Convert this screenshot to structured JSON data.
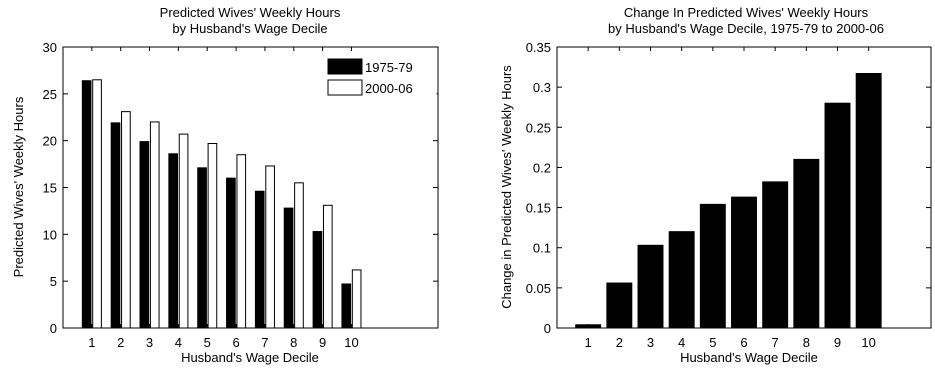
{
  "chart_data": [
    {
      "type": "bar",
      "title": "Predicted Wives' Weekly Hours",
      "subtitle": "by Husband's Wage Decile",
      "xlabel": "Husband's Wage Decile",
      "ylabel": "Predicted Wives' Weekly Hours",
      "categories": [
        "1",
        "2",
        "3",
        "4",
        "5",
        "6",
        "7",
        "8",
        "9",
        "10"
      ],
      "xlim": [
        0,
        13
      ],
      "ylim": [
        0,
        30
      ],
      "yticks": [
        "0",
        "5",
        "10",
        "15",
        "20",
        "25",
        "30"
      ],
      "grid": false,
      "legend_position": "top-right",
      "series": [
        {
          "name": "1975-79",
          "color": "#000000",
          "values": [
            26.4,
            21.9,
            19.9,
            18.6,
            17.1,
            16.0,
            14.6,
            12.8,
            10.3,
            4.7
          ]
        },
        {
          "name": "2000-06",
          "color": "#ffffff",
          "values": [
            26.5,
            23.1,
            22.0,
            20.7,
            19.7,
            18.5,
            17.3,
            15.5,
            13.1,
            6.2
          ]
        }
      ]
    },
    {
      "type": "bar",
      "title": "Change In Predicted Wives' Weekly Hours",
      "subtitle": "by Husband's Wage Decile, 1975-79 to 2000-06",
      "xlabel": "Husband's Wage Decile",
      "ylabel": "Change in Predicted Wives' Weekly Hours",
      "categories": [
        "1",
        "2",
        "3",
        "4",
        "5",
        "6",
        "7",
        "8",
        "9",
        "10"
      ],
      "xlim": [
        0,
        12
      ],
      "ylim": [
        0,
        0.35
      ],
      "yticks": [
        "0",
        "0.05",
        "0.1",
        "0.15",
        "0.2",
        "0.25",
        "0.3",
        "0.35"
      ],
      "grid": false,
      "series": [
        {
          "color": "#000000",
          "values": [
            0.004,
            0.056,
            0.103,
            0.12,
            0.154,
            0.163,
            0.182,
            0.21,
            0.28,
            0.317
          ]
        }
      ]
    }
  ]
}
